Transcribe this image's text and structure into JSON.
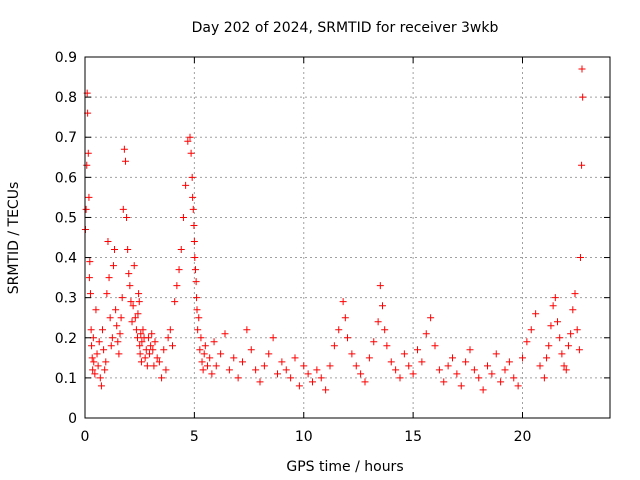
{
  "chart_data": {
    "type": "scatter",
    "title": "Day 202 of 2024, SRMTID for receiver 3wkb",
    "xlabel": "GPS time / hours",
    "ylabel": "SRMTID / TECUs",
    "xlim": [
      0,
      24
    ],
    "ylim": [
      0,
      0.9
    ],
    "xticks": [
      0,
      5,
      10,
      15,
      20
    ],
    "yticks": [
      0,
      0.1,
      0.2,
      0.3,
      0.4,
      0.5,
      0.6,
      0.7,
      0.8,
      0.9
    ],
    "grid": true,
    "marker": "+",
    "series": [
      {
        "name": "SRMTID",
        "color": "#ff0000",
        "x": [
          0.02,
          0.05,
          0.08,
          0.1,
          0.12,
          0.15,
          0.18,
          0.2,
          0.22,
          0.25,
          0.28,
          0.3,
          0.33,
          0.35,
          0.38,
          0.4,
          0.45,
          0.5,
          0.55,
          0.6,
          0.65,
          0.7,
          0.75,
          0.8,
          0.85,
          0.9,
          0.95,
          1.0,
          1.05,
          1.1,
          1.15,
          1.2,
          1.25,
          1.3,
          1.35,
          1.4,
          1.45,
          1.5,
          1.55,
          1.6,
          1.65,
          1.7,
          1.75,
          1.8,
          1.85,
          1.9,
          1.95,
          2.0,
          2.05,
          2.1,
          2.15,
          2.2,
          2.25,
          2.3,
          2.35,
          2.4,
          2.42,
          2.45,
          2.48,
          2.5,
          2.52,
          2.55,
          2.58,
          2.6,
          2.65,
          2.7,
          2.75,
          2.8,
          2.85,
          2.9,
          2.95,
          3.0,
          3.05,
          3.1,
          3.15,
          3.2,
          3.3,
          3.4,
          3.5,
          3.6,
          3.7,
          3.8,
          3.9,
          4.0,
          4.1,
          4.2,
          4.3,
          4.4,
          4.5,
          4.6,
          4.7,
          4.8,
          4.85,
          4.9,
          4.92,
          4.95,
          4.98,
          5.0,
          5.02,
          5.05,
          5.08,
          5.1,
          5.12,
          5.15,
          5.2,
          5.25,
          5.3,
          5.35,
          5.4,
          5.45,
          5.5,
          5.6,
          5.7,
          5.8,
          5.9,
          6.0,
          6.2,
          6.4,
          6.6,
          6.8,
          7.0,
          7.2,
          7.4,
          7.6,
          7.8,
          8.0,
          8.2,
          8.4,
          8.6,
          8.8,
          9.0,
          9.2,
          9.4,
          9.6,
          9.8,
          10.0,
          10.2,
          10.4,
          10.6,
          10.8,
          11.0,
          11.2,
          11.4,
          11.6,
          11.8,
          11.9,
          12.0,
          12.2,
          12.4,
          12.6,
          12.8,
          13.0,
          13.2,
          13.4,
          13.5,
          13.6,
          13.7,
          13.8,
          14.0,
          14.2,
          14.4,
          14.6,
          14.8,
          15.0,
          15.2,
          15.4,
          15.6,
          15.8,
          16.0,
          16.2,
          16.4,
          16.6,
          16.8,
          17.0,
          17.2,
          17.4,
          17.6,
          17.8,
          18.0,
          18.2,
          18.4,
          18.6,
          18.8,
          19.0,
          19.2,
          19.4,
          19.6,
          19.8,
          20.0,
          20.2,
          20.4,
          20.6,
          20.8,
          21.0,
          21.1,
          21.2,
          21.3,
          21.4,
          21.5,
          21.6,
          21.7,
          21.8,
          21.9,
          22.0,
          22.1,
          22.2,
          22.3,
          22.4,
          22.5,
          22.6,
          22.65,
          22.7,
          22.72,
          22.75
        ],
        "y": [
          0.47,
          0.52,
          0.63,
          0.81,
          0.76,
          0.66,
          0.55,
          0.35,
          0.39,
          0.31,
          0.22,
          0.18,
          0.15,
          0.12,
          0.2,
          0.14,
          0.11,
          0.27,
          0.16,
          0.13,
          0.19,
          0.1,
          0.08,
          0.22,
          0.17,
          0.12,
          0.14,
          0.31,
          0.44,
          0.35,
          0.25,
          0.18,
          0.2,
          0.38,
          0.42,
          0.27,
          0.23,
          0.19,
          0.16,
          0.21,
          0.25,
          0.3,
          0.52,
          0.67,
          0.64,
          0.5,
          0.42,
          0.36,
          0.33,
          0.29,
          0.24,
          0.28,
          0.38,
          0.25,
          0.22,
          0.2,
          0.26,
          0.31,
          0.29,
          0.18,
          0.16,
          0.21,
          0.14,
          0.19,
          0.22,
          0.2,
          0.15,
          0.17,
          0.13,
          0.2,
          0.16,
          0.18,
          0.21,
          0.17,
          0.13,
          0.19,
          0.15,
          0.14,
          0.1,
          0.17,
          0.12,
          0.2,
          0.22,
          0.18,
          0.29,
          0.33,
          0.37,
          0.42,
          0.5,
          0.58,
          0.69,
          0.7,
          0.66,
          0.6,
          0.55,
          0.52,
          0.48,
          0.44,
          0.4,
          0.37,
          0.34,
          0.3,
          0.27,
          0.22,
          0.25,
          0.17,
          0.2,
          0.14,
          0.12,
          0.16,
          0.18,
          0.13,
          0.15,
          0.11,
          0.19,
          0.13,
          0.16,
          0.21,
          0.12,
          0.15,
          0.1,
          0.14,
          0.22,
          0.17,
          0.12,
          0.09,
          0.13,
          0.16,
          0.2,
          0.11,
          0.14,
          0.12,
          0.1,
          0.15,
          0.08,
          0.13,
          0.11,
          0.09,
          0.12,
          0.1,
          0.07,
          0.13,
          0.18,
          0.22,
          0.29,
          0.25,
          0.2,
          0.16,
          0.13,
          0.11,
          0.09,
          0.15,
          0.19,
          0.24,
          0.33,
          0.28,
          0.22,
          0.18,
          0.14,
          0.12,
          0.1,
          0.16,
          0.13,
          0.11,
          0.17,
          0.14,
          0.21,
          0.25,
          0.18,
          0.12,
          0.09,
          0.13,
          0.15,
          0.11,
          0.08,
          0.14,
          0.17,
          0.12,
          0.1,
          0.07,
          0.13,
          0.11,
          0.16,
          0.09,
          0.12,
          0.14,
          0.1,
          0.08,
          0.15,
          0.19,
          0.22,
          0.26,
          0.13,
          0.1,
          0.15,
          0.18,
          0.23,
          0.28,
          0.3,
          0.24,
          0.2,
          0.16,
          0.13,
          0.12,
          0.18,
          0.21,
          0.27,
          0.31,
          0.22,
          0.17,
          0.4,
          0.63,
          0.87,
          0.8
        ]
      }
    ]
  }
}
